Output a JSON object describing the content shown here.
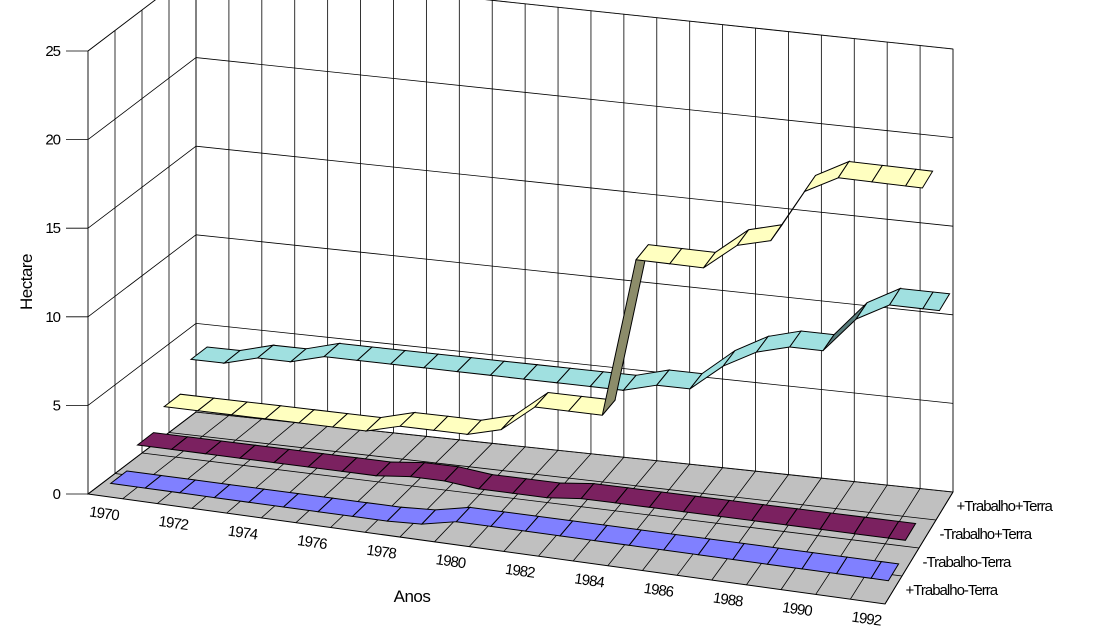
{
  "chart_data": {
    "type": "line",
    "style": "3d-ribbon",
    "title": "",
    "xlabel": "Anos",
    "ylabel": "Hectare",
    "x": [
      1970,
      1971,
      1972,
      1973,
      1974,
      1975,
      1976,
      1977,
      1978,
      1979,
      1980,
      1981,
      1982,
      1983,
      1984,
      1985,
      1986,
      1987,
      1988,
      1989,
      1990,
      1991,
      1992
    ],
    "x_tick_labels": [
      "1970",
      "1972",
      "1974",
      "1976",
      "1978",
      "1980",
      "1982",
      "1984",
      "1986",
      "1988",
      "1990",
      "1992"
    ],
    "y_ticks": [
      "0",
      "5",
      "10",
      "15",
      "20",
      "25"
    ],
    "ylim": [
      0,
      25
    ],
    "grid": true,
    "series": [
      {
        "name": "+Trabalho-Terra",
        "color": "#8080ff",
        "values": [
          0.5,
          0.5,
          0.5,
          0.5,
          0.5,
          0.5,
          0.5,
          0.5,
          0.5,
          0.6,
          1.0,
          1.0,
          1.0,
          1.0,
          1.0,
          1.0,
          1.0,
          1.0,
          1.0,
          1.0,
          1.0,
          1.0,
          1.0
        ]
      },
      {
        "name": "-Trabalho-Terra",
        "color": "#7b2160",
        "values": [
          1.5,
          1.5,
          1.5,
          1.5,
          1.5,
          1.5,
          1.5,
          1.5,
          1.7,
          1.7,
          1.5,
          1.5,
          1.5,
          1.7,
          1.7,
          1.7,
          1.7,
          1.7,
          1.7,
          1.7,
          1.7,
          1.7,
          1.7
        ]
      },
      {
        "name": "-Trabalho+Terra",
        "color": "#ffffc0",
        "values": [
          2.5,
          2.5,
          2.5,
          2.5,
          2.5,
          2.5,
          2.5,
          3.0,
          3.0,
          3.0,
          3.5,
          5.0,
          5.0,
          5.0,
          14.0,
          14.0,
          14.0,
          15.5,
          16.0,
          19.0,
          20.0,
          20.0,
          20.0
        ]
      },
      {
        "name": "+Trabalho+Terra",
        "color": "#a0e0e0",
        "values": [
          4.0,
          4.0,
          4.5,
          4.5,
          5.0,
          5.0,
          5.0,
          5.0,
          5.0,
          5.0,
          5.0,
          5.0,
          5.0,
          5.0,
          5.5,
          5.5,
          7.0,
          8.0,
          8.5,
          8.5,
          10.5,
          11.5,
          11.5
        ]
      }
    ]
  }
}
